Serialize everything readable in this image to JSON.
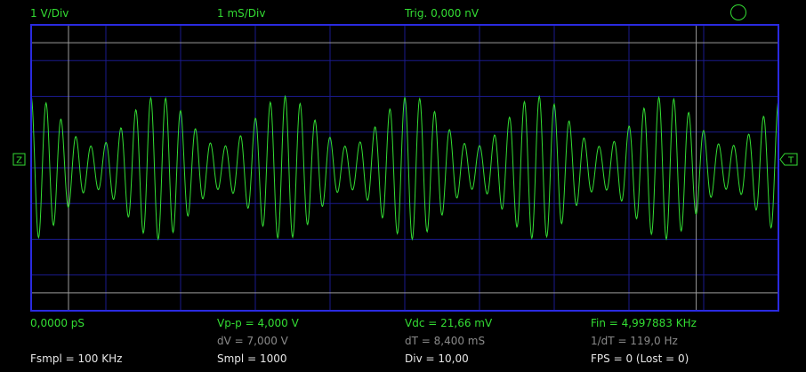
{
  "header": {
    "volts_per_div": "1 V/Div",
    "time_per_div": "1 mS/Div",
    "trigger": "Trig. 0,000 nV"
  },
  "markers": {
    "left": "Z",
    "right": "T"
  },
  "measurements": {
    "row1": [
      "0,0000 pS",
      "Vp-p = 4,000 V",
      "Vdc = 21,66 mV",
      "Fin = 4,997883 KHz"
    ],
    "row2": [
      "dV = 7,000 V",
      "dT = 8,400 mS",
      "1/dT = 119,0 Hz"
    ],
    "row3": [
      "Fsmpl = 100 KHz",
      "Smpl = 1000",
      "Div = 10,00",
      "FPS = 0 (Lost = 0)"
    ]
  },
  "colors": {
    "trace": "#33dd33",
    "grid": "#1a1a8c",
    "border": "#2a2ae0",
    "cursor": "#9a9a9a",
    "text_green": "#33dd33",
    "text_gray": "#8a8a8a",
    "text_white": "#e6e6e6"
  },
  "signal": {
    "carrier_frequency_hz": 5000,
    "modulation_frequency_hz": 590,
    "amplitude_v": 2.0,
    "modulation_depth": 0.35,
    "time_span_ms": 10
  },
  "cursors": {
    "t1_ms": 0.5,
    "t2_ms": 8.9,
    "v1_v": 3.5,
    "v2_v": -3.5
  }
}
